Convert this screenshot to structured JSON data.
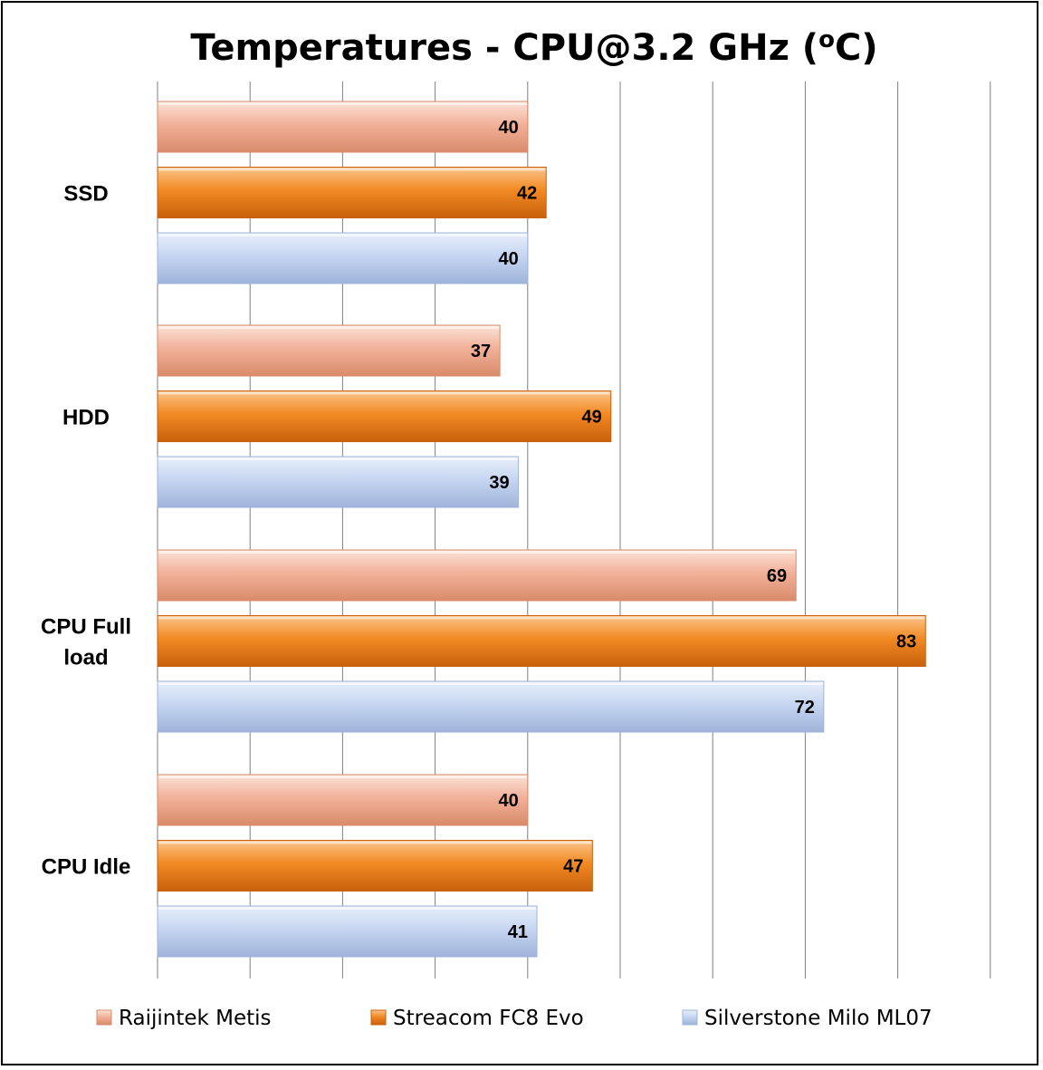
{
  "chart_data": {
    "type": "bar",
    "orientation": "horizontal",
    "title": "Temperatures - CPU@3.2 GHz (",
    "title_superscript": "o",
    "title_suffix": "C)",
    "categories": [
      "SSD",
      "HDD",
      "CPU Full load",
      "CPU Idle"
    ],
    "category_lines": [
      [
        "SSD"
      ],
      [
        "HDD"
      ],
      [
        "CPU Full",
        "load"
      ],
      [
        "CPU Idle"
      ]
    ],
    "series": [
      {
        "name": "Raijintek Metis",
        "values": [
          40,
          37,
          69,
          40
        ],
        "color": "#f2b199",
        "color_light": "#fbe3d8",
        "color_dark": "#d98b6b"
      },
      {
        "name": "Streacom FC8 Evo",
        "values": [
          42,
          49,
          83,
          47
        ],
        "color": "#f28a24",
        "color_light": "#fbc48a",
        "color_dark": "#c8600c"
      },
      {
        "name": "Silverstone Milo ML07",
        "values": [
          40,
          39,
          72,
          41
        ],
        "color": "#c6d6f2",
        "color_light": "#e9effa",
        "color_dark": "#9fb4da"
      }
    ],
    "xlim": [
      0,
      90
    ],
    "major_step": 10,
    "grid": "vertical",
    "legend_position": "bottom",
    "data_labels": true
  }
}
